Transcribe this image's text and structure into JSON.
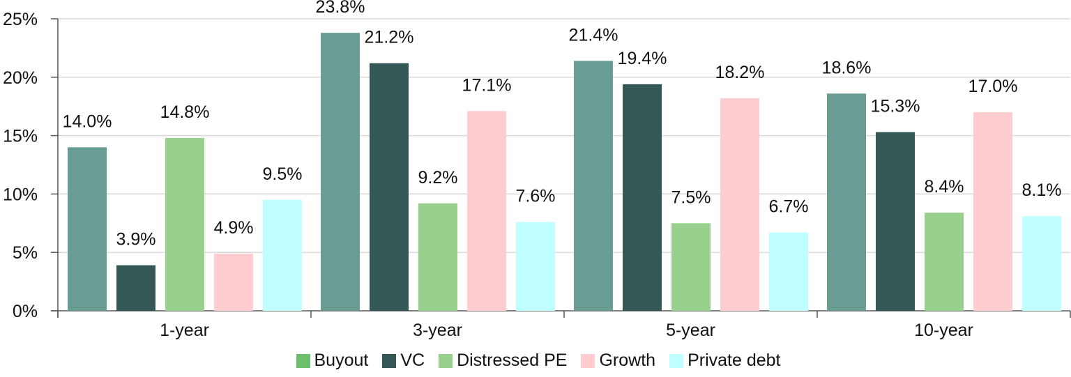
{
  "chart_data": {
    "type": "bar",
    "categories": [
      "1-year",
      "3-year",
      "5-year",
      "10-year"
    ],
    "series": [
      {
        "name": "Buyout",
        "values": [
          14.0,
          23.8,
          21.4,
          18.6
        ],
        "color": "#699c93",
        "legend_color": "#6cc06c"
      },
      {
        "name": "VC",
        "values": [
          3.9,
          21.2,
          19.4,
          15.3
        ],
        "color": "#335856",
        "legend_color": "#335856"
      },
      {
        "name": "Distressed PE",
        "values": [
          14.8,
          9.2,
          7.5,
          8.4
        ],
        "color": "#98d18e",
        "legend_color": "#98d18e"
      },
      {
        "name": "Growth",
        "values": [
          4.9,
          17.1,
          18.2,
          17.0
        ],
        "color": "#ffccd0",
        "legend_color": "#ffccd0"
      },
      {
        "name": "Private debt",
        "values": [
          9.5,
          7.6,
          6.7,
          8.1
        ],
        "color": "#c0ffff",
        "legend_color": "#c0ffff"
      }
    ],
    "data_labels": [
      [
        "14.0%",
        "23.8%",
        "21.4%",
        "18.6%"
      ],
      [
        "3.9%",
        "21.2%",
        "19.4%",
        "15.3%"
      ],
      [
        "14.8%",
        "9.2%",
        "7.5%",
        "8.4%"
      ],
      [
        "4.9%",
        "17.1%",
        "18.2%",
        "17.0%"
      ],
      [
        "9.5%",
        "7.6%",
        "6.7%",
        "8.1%"
      ]
    ],
    "yticks": [
      "0%",
      "5%",
      "10%",
      "15%",
      "20%",
      "25%"
    ],
    "ylim": [
      0,
      25
    ],
    "grid": true,
    "legend_position": "bottom",
    "title": "",
    "xlabel": "",
    "ylabel": ""
  }
}
